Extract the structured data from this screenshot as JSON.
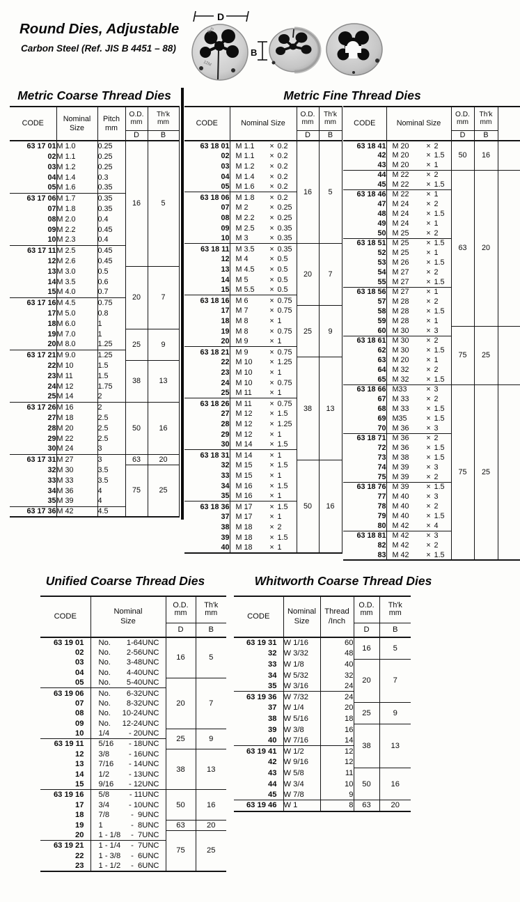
{
  "header": {
    "title": "Round Dies, Adjustable",
    "subtitle": "Carbon Steel  (Ref. JIS B 4451 – 88)"
  },
  "diagram": {
    "d_label": "D",
    "b_label": "B"
  },
  "tables": {
    "metric_coarse": {
      "title": "Metric Coarse Thread Dies",
      "head": {
        "code": "CODE",
        "nominal": [
          "Nominal",
          "Size"
        ],
        "pitch": [
          "Pitch",
          "mm"
        ],
        "od": [
          "O.D.",
          "mm"
        ],
        "thk": [
          "Th'k",
          "mm"
        ],
        "d": "D",
        "b": "B"
      },
      "rows": [
        [
          "63 17 01",
          "M 1.0",
          "0.25"
        ],
        [
          "02",
          "M 1.1",
          "0.25"
        ],
        [
          "03",
          "M 1.2",
          "0.25"
        ],
        [
          "04",
          "M 1.4",
          "0.3"
        ],
        [
          "05",
          "M 1.6",
          "0.35"
        ],
        [
          "63 17 06",
          "M 1.7",
          "0.35"
        ],
        [
          "07",
          "M 1.8",
          "0.35"
        ],
        [
          "08",
          "M 2.0",
          "0.4"
        ],
        [
          "09",
          "M 2.2",
          "0.45"
        ],
        [
          "10",
          "M 2.3",
          "0.4"
        ],
        [
          "63 17 11",
          "M 2.5",
          "0.45"
        ],
        [
          "12",
          "M 2.6",
          "0.45"
        ],
        [
          "13",
          "M 3.0",
          "0.5"
        ],
        [
          "14",
          "M 3.5",
          "0.6"
        ],
        [
          "15",
          "M 4.0",
          "0.7"
        ],
        [
          "63 17 16",
          "M 4.5",
          "0.75"
        ],
        [
          "17",
          "M 5.0",
          "0.8"
        ],
        [
          "18",
          "M 6.0",
          "1"
        ],
        [
          "19",
          "M 7.0",
          "1"
        ],
        [
          "20",
          "M 8.0",
          "1.25"
        ],
        [
          "63 17 21",
          "M 9.0",
          "1.25"
        ],
        [
          "22",
          "M 10",
          "1.5"
        ],
        [
          "23",
          "M 11",
          "1.5"
        ],
        [
          "24",
          "M 12",
          "1.75"
        ],
        [
          "25",
          "M 14",
          "2"
        ],
        [
          "63 17 26",
          "M 16",
          "2"
        ],
        [
          "27",
          "M 18",
          "2.5"
        ],
        [
          "28",
          "M 20",
          "2.5"
        ],
        [
          "29",
          "M 22",
          "2.5"
        ],
        [
          "30",
          "M 24",
          "3"
        ],
        [
          "63 17 31",
          "M 27",
          "3"
        ],
        [
          "32",
          "M 30",
          "3.5"
        ],
        [
          "33",
          "M 33",
          "3.5"
        ],
        [
          "34",
          "M 36",
          "4"
        ],
        [
          "35",
          "M 39",
          "4"
        ],
        [
          "63 17 36",
          "M 42",
          "4.5"
        ]
      ],
      "od_groups": [
        [
          12,
          "16",
          "5"
        ],
        [
          6,
          "20",
          "7"
        ],
        [
          3,
          "25",
          "9"
        ],
        [
          4,
          "38",
          "13"
        ],
        [
          5,
          "50",
          "16"
        ],
        [
          1,
          "63",
          "20"
        ],
        [
          5,
          "75",
          "25"
        ]
      ]
    },
    "metric_fine": {
      "title": "Metric Fine Thread Dies",
      "x": "×",
      "left": {
        "head": {
          "code": "CODE",
          "nominal": "Nominal Size",
          "od": [
            "O.D.",
            "mm"
          ],
          "thk": [
            "Th'k",
            "mm"
          ],
          "d": "D",
          "b": "B"
        },
        "rows": [
          [
            "63 18 01",
            "M 1.1",
            "0.2"
          ],
          [
            "02",
            "M 1.1",
            "0.2"
          ],
          [
            "03",
            "M 1.2",
            "0.2"
          ],
          [
            "04",
            "M 1.4",
            "0.2"
          ],
          [
            "05",
            "M 1.6",
            "0.2"
          ],
          [
            "63 18 06",
            "M 1.8",
            "0.2"
          ],
          [
            "07",
            "M 2",
            "0.25"
          ],
          [
            "08",
            "M 2.2",
            "0.25"
          ],
          [
            "09",
            "M 2.5",
            "0.35"
          ],
          [
            "10",
            "M 3",
            "0.35"
          ],
          [
            "63 18 11",
            "M 3.5",
            "0.35"
          ],
          [
            "12",
            "M 4",
            "0.5"
          ],
          [
            "13",
            "M 4.5",
            "0.5"
          ],
          [
            "14",
            "M 5",
            "0.5"
          ],
          [
            "15",
            "M 5.5",
            "0.5"
          ],
          [
            "63 18 16",
            "M 6",
            "0.75"
          ],
          [
            "17",
            "M 7",
            "0.75"
          ],
          [
            "18",
            "M 8",
            "1"
          ],
          [
            "19",
            "M 8",
            "0.75"
          ],
          [
            "20",
            "M 9",
            "1"
          ],
          [
            "63 18 21",
            "M 9",
            "0.75"
          ],
          [
            "22",
            "M 10",
            "1.25"
          ],
          [
            "23",
            "M 10",
            "1"
          ],
          [
            "24",
            "M 10",
            "0.75"
          ],
          [
            "25",
            "M 11",
            "1"
          ],
          [
            "63 18 26",
            "M 11",
            "0.75"
          ],
          [
            "27",
            "M 12",
            "1.5"
          ],
          [
            "28",
            "M 12",
            "1.25"
          ],
          [
            "29",
            "M 12",
            "1"
          ],
          [
            "30",
            "M 14",
            "1.5"
          ],
          [
            "63 18 31",
            "M 14",
            "1"
          ],
          [
            "32",
            "M 15",
            "1.5"
          ],
          [
            "33",
            "M 15",
            "1"
          ],
          [
            "34",
            "M 16",
            "1.5"
          ],
          [
            "35",
            "M 16",
            "1"
          ],
          [
            "63 18 36",
            "M 17",
            "1.5"
          ],
          [
            "37",
            "M 17",
            "1"
          ],
          [
            "38",
            "M 18",
            "2"
          ],
          [
            "39",
            "M 18",
            "1.5"
          ],
          [
            "40",
            "M 18",
            "1"
          ]
        ],
        "od_groups": [
          [
            10,
            "16",
            "5"
          ],
          [
            6,
            "20",
            "7"
          ],
          [
            5,
            "25",
            "9"
          ],
          [
            10,
            "38",
            "13"
          ],
          [
            9,
            "50",
            "16"
          ]
        ]
      },
      "right": {
        "head": {
          "code": "CODE",
          "nominal": "Nominal Size",
          "od": [
            "O.D.",
            "mm"
          ],
          "thk": [
            "Th'k",
            "mm"
          ],
          "d": "D",
          "b": "B"
        },
        "rows": [
          [
            "63 18 41",
            "M 20",
            "2"
          ],
          [
            "42",
            "M 20",
            "1.5"
          ],
          [
            "43",
            "M 20",
            "1"
          ],
          [
            "44",
            "M 22",
            "2",
            1
          ],
          [
            "45",
            "M 22",
            "1.5"
          ],
          [
            "63 18 46",
            "M 22",
            "1"
          ],
          [
            "47",
            "M 24",
            "2"
          ],
          [
            "48",
            "M 24",
            "1.5"
          ],
          [
            "49",
            "M 24",
            "1"
          ],
          [
            "50",
            "M 25",
            "2"
          ],
          [
            "63 18 51",
            "M 25",
            "1.5"
          ],
          [
            "52",
            "M 25",
            "1"
          ],
          [
            "53",
            "M 26",
            "1.5"
          ],
          [
            "54",
            "M 27",
            "2"
          ],
          [
            "55",
            "M 27",
            "1.5"
          ],
          [
            "63 18 56",
            "M 27",
            "1"
          ],
          [
            "57",
            "M 28",
            "2"
          ],
          [
            "58",
            "M 28",
            "1.5"
          ],
          [
            "59",
            "M 28",
            "1"
          ],
          [
            "60",
            "M 30",
            "3"
          ],
          [
            "63 18 61",
            "M 30",
            "2"
          ],
          [
            "62",
            "M 30",
            "1.5"
          ],
          [
            "63",
            "M 20",
            "1"
          ],
          [
            "64",
            "M 32",
            "2"
          ],
          [
            "65",
            "M 32",
            "1.5"
          ],
          [
            "63 18 66",
            "M33",
            "3"
          ],
          [
            "67",
            "M 33",
            "2"
          ],
          [
            "68",
            "M 33",
            "1.5"
          ],
          [
            "69",
            "M35",
            "1.5"
          ],
          [
            "70",
            "M 36",
            "3"
          ],
          [
            "63 18 71",
            "M 36",
            "2"
          ],
          [
            "72",
            "M 36",
            "1.5"
          ],
          [
            "73",
            "M 38",
            "1.5"
          ],
          [
            "74",
            "M 39",
            "3"
          ],
          [
            "75",
            "M 39",
            "2"
          ],
          [
            "63 18 76",
            "M 39",
            "1.5"
          ],
          [
            "77",
            "M 40",
            "3"
          ],
          [
            "78",
            "M 40",
            "2"
          ],
          [
            "79",
            "M 40",
            "1.5"
          ],
          [
            "80",
            "M 42",
            "4"
          ],
          [
            "63 18 81",
            "M 42",
            "3"
          ],
          [
            "82",
            "M 42",
            "2"
          ],
          [
            "83",
            "M 42",
            "1.5"
          ]
        ],
        "od_groups": [
          [
            3,
            "50",
            "16"
          ],
          [
            16,
            "63",
            "20"
          ],
          [
            6,
            "75",
            "25"
          ],
          [
            18,
            "75",
            "25"
          ]
        ]
      }
    },
    "unified": {
      "title": "Unified Coarse Thread Dies",
      "head": {
        "code": "CODE",
        "nominal": [
          "Nominal",
          "Size"
        ],
        "od": [
          "O.D.",
          "mm"
        ],
        "thk": [
          "Th'k",
          "mm"
        ],
        "d": "D",
        "b": "B"
      },
      "rows": [
        [
          "63 19 01",
          "No.",
          "1-64UNC"
        ],
        [
          "02",
          "No.",
          "2-56UNC"
        ],
        [
          "03",
          "No.",
          "3-48UNC"
        ],
        [
          "04",
          "No.",
          "4-40UNC"
        ],
        [
          "05",
          "No.",
          "5-40UNC"
        ],
        [
          "63 19 06",
          "No.",
          "6-32UNC",
          1
        ],
        [
          "07",
          "No.",
          "8-32UNC"
        ],
        [
          "08",
          "No.",
          "10-24UNC"
        ],
        [
          "09",
          "No.",
          "12-24UNC"
        ],
        [
          "10",
          "1/4",
          "- 20UNC"
        ],
        [
          "63 19 11",
          "5/16",
          "- 18UNC"
        ],
        [
          "12",
          "3/8",
          "- 16UNC"
        ],
        [
          "13",
          "7/16",
          "- 14UNC"
        ],
        [
          "14",
          "1/2",
          "- 13UNC"
        ],
        [
          "15",
          "9/16",
          "- 12UNC"
        ],
        [
          "63 19 16",
          "5/8",
          "- 11UNC",
          1
        ],
        [
          "17",
          "3/4",
          "- 10UNC"
        ],
        [
          "18",
          "7/8",
          "-  9UNC"
        ],
        [
          "19",
          "1",
          "-  8UNC"
        ],
        [
          "20",
          "1 - 1/8",
          "-  7UNC"
        ],
        [
          "63 19 21",
          "1 - 1/4",
          "-  7UNC",
          1
        ],
        [
          "22",
          "1 - 3/8",
          "-  6UNC"
        ],
        [
          "23",
          "1 - 1/2",
          "-  6UNC"
        ]
      ],
      "od_groups": [
        [
          4,
          "16",
          "5"
        ],
        [
          5,
          "20",
          "7"
        ],
        [
          2,
          "25",
          "9"
        ],
        [
          4,
          "38",
          "13"
        ],
        [
          3,
          "50",
          "16"
        ],
        [
          1,
          "63",
          "20"
        ],
        [
          4,
          "75",
          "25"
        ]
      ]
    },
    "whitworth": {
      "title": "Whitworth Coarse Thread Dies",
      "head": {
        "code": "CODE",
        "nominal": [
          "Nominal",
          "Size"
        ],
        "thread": [
          "Thread",
          "/Inch"
        ],
        "od": [
          "O.D.",
          "mm"
        ],
        "thk": [
          "Th'k",
          "mm"
        ],
        "d": "D",
        "b": "B"
      },
      "rows": [
        [
          "63 19 31",
          "W 1/16",
          "60"
        ],
        [
          "32",
          "W 3/32",
          "48"
        ],
        [
          "33",
          "W 1/8",
          "40"
        ],
        [
          "34",
          "W 5/32",
          "32"
        ],
        [
          "35",
          "W 3/16",
          "24"
        ],
        [
          "63 19 36",
          "W 7/32",
          "24",
          1
        ],
        [
          "37",
          "W 1/4",
          "20"
        ],
        [
          "38",
          "W 5/16",
          "18"
        ],
        [
          "39",
          "W 3/8",
          "16"
        ],
        [
          "40",
          "W 7/16",
          "14"
        ],
        [
          "63 19 41",
          "W 1/2",
          "12",
          1
        ],
        [
          "42",
          "W 9/16",
          "12"
        ],
        [
          "43",
          "W 5/8",
          "11"
        ],
        [
          "44",
          "W 3/4",
          "10"
        ],
        [
          "45",
          "W 7/8",
          "9"
        ],
        [
          "63 19 46",
          "W  1",
          "8",
          1
        ]
      ],
      "od_groups": [
        [
          2,
          "16",
          "5"
        ],
        [
          4,
          "20",
          "7"
        ],
        [
          2,
          "25",
          "9"
        ],
        [
          4,
          "38",
          "13"
        ],
        [
          3,
          "50",
          "16"
        ],
        [
          1,
          "63",
          "20"
        ]
      ]
    }
  }
}
